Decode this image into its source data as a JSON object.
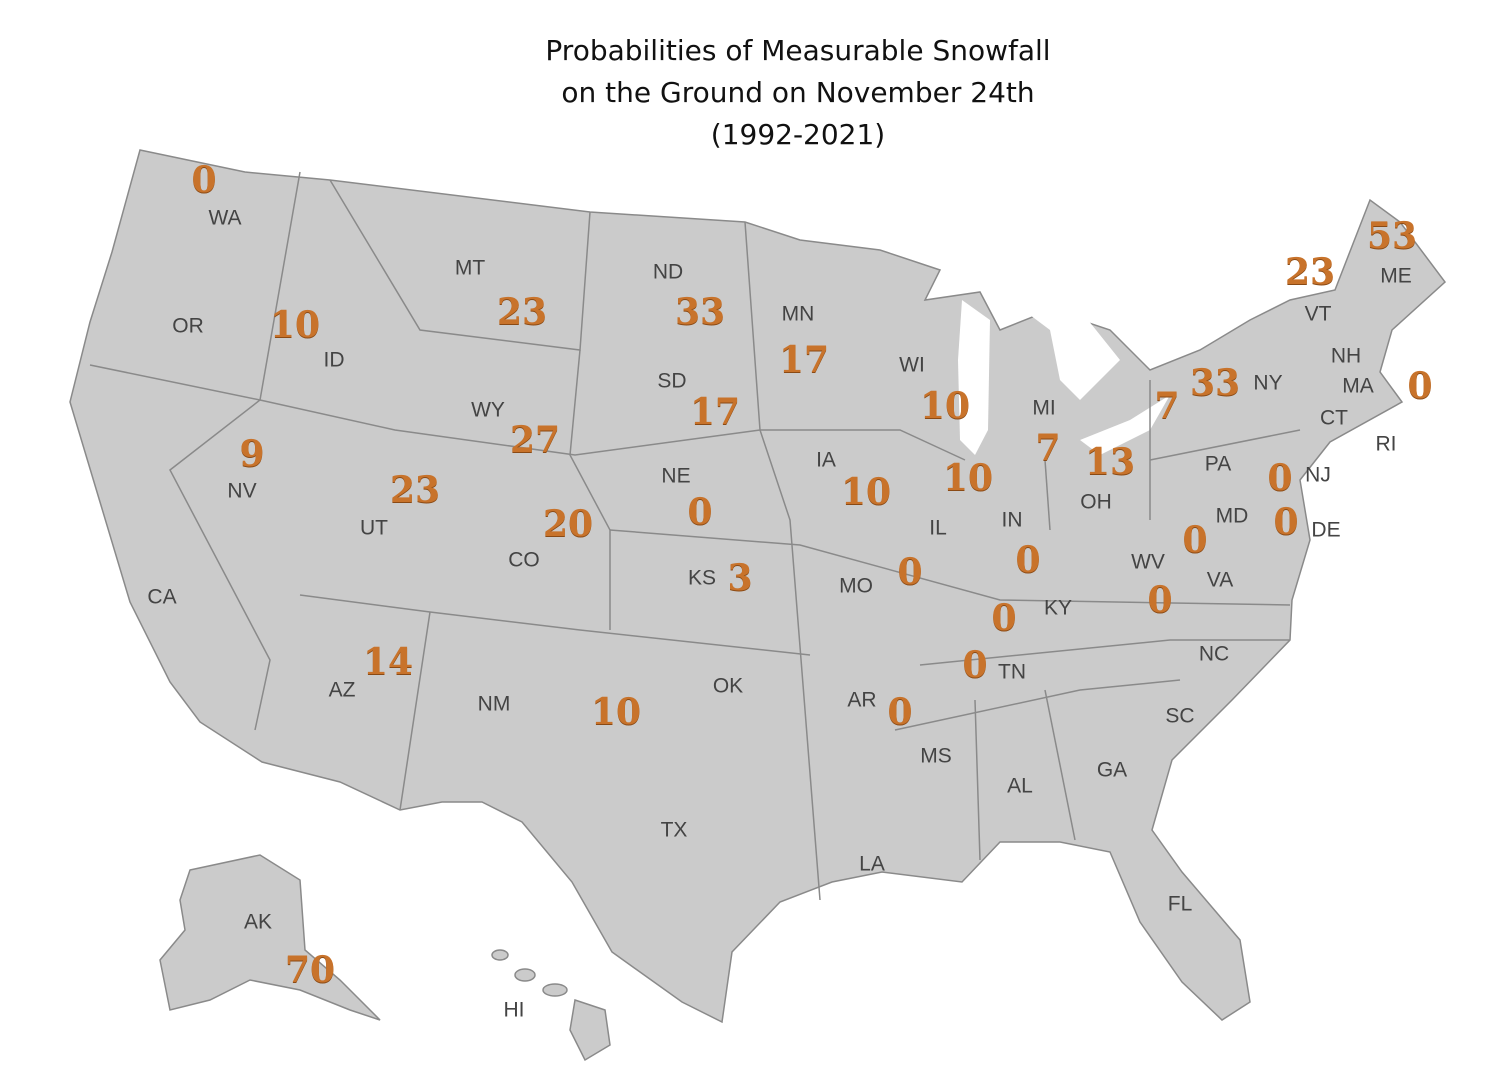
{
  "title": [
    "Probabilities of Measurable Snowfall",
    "on the Ground on November 24th",
    "(1992-2021)"
  ],
  "colors": {
    "land": "#cbcbcb",
    "border": "#888888",
    "value": "#c8732b",
    "label": "#444444"
  },
  "state_labels": [
    "WA",
    "OR",
    "CA",
    "NV",
    "ID",
    "MT",
    "WY",
    "UT",
    "CO",
    "AZ",
    "NM",
    "ND",
    "SD",
    "NE",
    "KS",
    "OK",
    "TX",
    "MN",
    "IA",
    "MO",
    "AR",
    "LA",
    "WI",
    "IL",
    "MI",
    "IN",
    "OH",
    "KY",
    "TN",
    "MS",
    "AL",
    "GA",
    "FL",
    "SC",
    "NC",
    "VA",
    "WV",
    "PA",
    "NY",
    "VT",
    "NH",
    "ME",
    "MA",
    "CT",
    "RI",
    "NJ",
    "DE",
    "MD",
    "AK",
    "HI"
  ],
  "values": [
    {
      "state": "WA",
      "value": "0"
    },
    {
      "state": "ID",
      "value": "10"
    },
    {
      "state": "MT",
      "value": "23"
    },
    {
      "state": "ND",
      "value": "33"
    },
    {
      "state": "MN",
      "value": "17"
    },
    {
      "state": "WI",
      "value": "10"
    },
    {
      "state": "WY",
      "value": "27"
    },
    {
      "state": "SD",
      "value": "17"
    },
    {
      "state": "NV",
      "value": "9"
    },
    {
      "state": "UT",
      "value": "23"
    },
    {
      "state": "CO",
      "value": "20"
    },
    {
      "state": "NE",
      "value": "0"
    },
    {
      "state": "IA",
      "value": "10"
    },
    {
      "state": "IL",
      "value": "10"
    },
    {
      "state": "IN",
      "value": "0"
    },
    {
      "state": "OH",
      "value": "13"
    },
    {
      "state": "MI",
      "value": "7"
    },
    {
      "state": "PA",
      "value": "7"
    },
    {
      "state": "NY",
      "value": "33"
    },
    {
      "state": "VT",
      "value": "23"
    },
    {
      "state": "ME",
      "value": "53"
    },
    {
      "state": "MA",
      "value": "0"
    },
    {
      "state": "NJ",
      "value": "0"
    },
    {
      "state": "MD",
      "value": "0"
    },
    {
      "state": "DE",
      "value": "0"
    },
    {
      "state": "WV",
      "value": "0"
    },
    {
      "state": "KS",
      "value": "3"
    },
    {
      "state": "MO",
      "value": "0"
    },
    {
      "state": "KY",
      "value": "0"
    },
    {
      "state": "TN",
      "value": "0"
    },
    {
      "state": "AZ",
      "value": "14"
    },
    {
      "state": "NM",
      "value": "10"
    },
    {
      "state": "AR",
      "value": "0"
    },
    {
      "state": "AK",
      "value": "70"
    }
  ]
}
